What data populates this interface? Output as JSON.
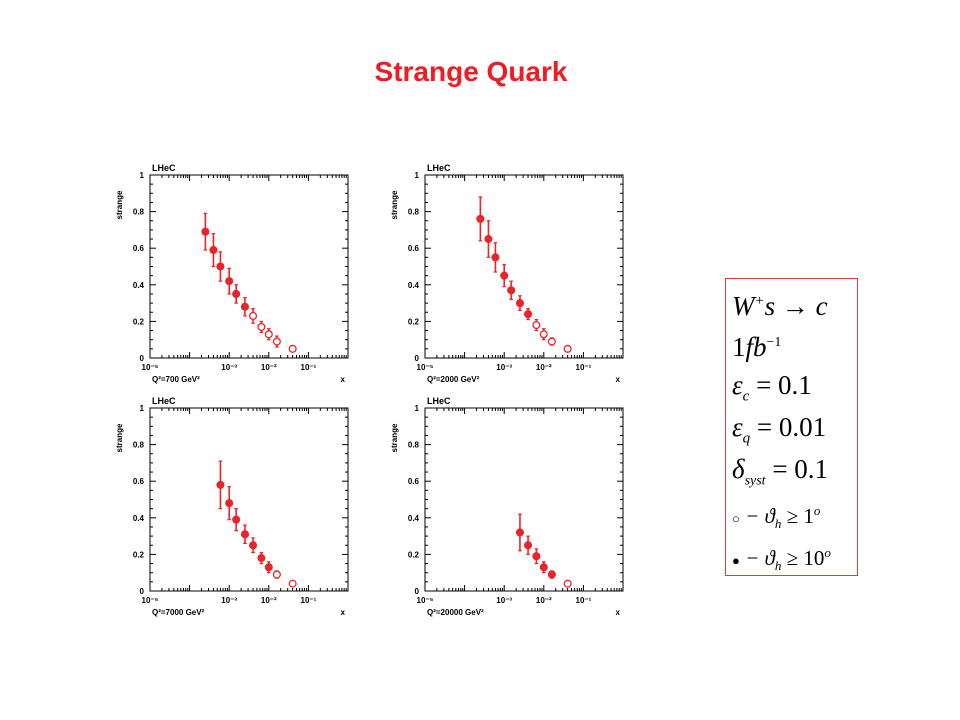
{
  "slide": {
    "title": "Strange Quark"
  },
  "colors": {
    "title": "#ee1c25",
    "marker": "#e8252a",
    "legend_border": "#e23a3a"
  },
  "chart_data": [
    {
      "type": "scatter",
      "tag": "LHeC",
      "ylabel": "strange",
      "xlabel": "x",
      "q2_label": "Q²=700 GeV²",
      "x_scale": "log",
      "xlim": [
        1e-05,
        1
      ],
      "ylim": [
        0,
        1
      ],
      "xticks": [
        "10⁻⁵",
        "10⁻³",
        "10⁻²",
        "10⁻¹"
      ],
      "yticks": [
        "0",
        "0.2",
        "0.4",
        "0.6",
        "0.8",
        "1"
      ],
      "points": [
        {
          "x": 0.00025,
          "y": 0.69,
          "err": 0.1,
          "filled": true
        },
        {
          "x": 0.0004,
          "y": 0.59,
          "err": 0.09,
          "filled": true
        },
        {
          "x": 0.0006,
          "y": 0.5,
          "err": 0.08,
          "filled": true
        },
        {
          "x": 0.001,
          "y": 0.42,
          "err": 0.07,
          "filled": true
        },
        {
          "x": 0.0015,
          "y": 0.35,
          "err": 0.05,
          "filled": true
        },
        {
          "x": 0.0025,
          "y": 0.28,
          "err": 0.05,
          "filled": true
        },
        {
          "x": 0.004,
          "y": 0.23,
          "err": 0.04,
          "filled": false
        },
        {
          "x": 0.0065,
          "y": 0.17,
          "err": 0.03,
          "filled": false
        },
        {
          "x": 0.01,
          "y": 0.13,
          "err": 0.03,
          "filled": false
        },
        {
          "x": 0.016,
          "y": 0.09,
          "err": 0.03,
          "filled": false
        },
        {
          "x": 0.04,
          "y": 0.05,
          "err": 0.0,
          "filled": false
        }
      ]
    },
    {
      "type": "scatter",
      "tag": "LHeC",
      "ylabel": "strange",
      "xlabel": "x",
      "q2_label": "Q²=2000 GeV²",
      "x_scale": "log",
      "xlim": [
        1e-05,
        1
      ],
      "ylim": [
        0,
        1
      ],
      "xticks": [
        "10⁻⁵",
        "10⁻³",
        "10⁻²",
        "10⁻¹"
      ],
      "yticks": [
        "0",
        "0.2",
        "0.4",
        "0.6",
        "0.8",
        "1"
      ],
      "points": [
        {
          "x": 0.00025,
          "y": 0.76,
          "err": 0.12,
          "filled": true
        },
        {
          "x": 0.0004,
          "y": 0.65,
          "err": 0.1,
          "filled": true
        },
        {
          "x": 0.0006,
          "y": 0.55,
          "err": 0.08,
          "filled": true
        },
        {
          "x": 0.001,
          "y": 0.45,
          "err": 0.06,
          "filled": true
        },
        {
          "x": 0.0015,
          "y": 0.37,
          "err": 0.05,
          "filled": true
        },
        {
          "x": 0.0025,
          "y": 0.3,
          "err": 0.04,
          "filled": true
        },
        {
          "x": 0.004,
          "y": 0.24,
          "err": 0.03,
          "filled": true
        },
        {
          "x": 0.0065,
          "y": 0.18,
          "err": 0.03,
          "filled": false
        },
        {
          "x": 0.01,
          "y": 0.13,
          "err": 0.03,
          "filled": false
        },
        {
          "x": 0.016,
          "y": 0.09,
          "err": 0.02,
          "filled": false
        },
        {
          "x": 0.04,
          "y": 0.05,
          "err": 0.0,
          "filled": false
        }
      ]
    },
    {
      "type": "scatter",
      "tag": "LHeC",
      "ylabel": "strange",
      "xlabel": "x",
      "q2_label": "Q²=7000 GeV²",
      "x_scale": "log",
      "xlim": [
        1e-05,
        1
      ],
      "ylim": [
        0,
        1
      ],
      "xticks": [
        "10⁻⁵",
        "10⁻³",
        "10⁻²",
        "10⁻¹"
      ],
      "yticks": [
        "0",
        "0.2",
        "0.4",
        "0.6",
        "0.8",
        "1"
      ],
      "points": [
        {
          "x": 0.0006,
          "y": 0.58,
          "err": 0.13,
          "filled": true
        },
        {
          "x": 0.001,
          "y": 0.48,
          "err": 0.09,
          "filled": true
        },
        {
          "x": 0.0015,
          "y": 0.39,
          "err": 0.06,
          "filled": true
        },
        {
          "x": 0.0025,
          "y": 0.31,
          "err": 0.05,
          "filled": true
        },
        {
          "x": 0.004,
          "y": 0.25,
          "err": 0.04,
          "filled": true
        },
        {
          "x": 0.0065,
          "y": 0.18,
          "err": 0.03,
          "filled": true
        },
        {
          "x": 0.01,
          "y": 0.13,
          "err": 0.03,
          "filled": true
        },
        {
          "x": 0.016,
          "y": 0.09,
          "err": 0.02,
          "filled": false
        },
        {
          "x": 0.04,
          "y": 0.04,
          "err": 0.0,
          "filled": false
        }
      ]
    },
    {
      "type": "scatter",
      "tag": "LHeC",
      "ylabel": "strange",
      "xlabel": "x",
      "q2_label": "Q²=20000 GeV²",
      "x_scale": "log",
      "xlim": [
        1e-05,
        1
      ],
      "ylim": [
        0,
        1
      ],
      "xticks": [
        "10⁻⁵",
        "10⁻³",
        "10⁻²",
        "10⁻¹"
      ],
      "yticks": [
        "0",
        "0.2",
        "0.4",
        "0.6",
        "0.8",
        "1"
      ],
      "points": [
        {
          "x": 0.0025,
          "y": 0.32,
          "err": 0.1,
          "filled": true
        },
        {
          "x": 0.004,
          "y": 0.25,
          "err": 0.05,
          "filled": true
        },
        {
          "x": 0.0065,
          "y": 0.19,
          "err": 0.04,
          "filled": true
        },
        {
          "x": 0.01,
          "y": 0.13,
          "err": 0.03,
          "filled": true
        },
        {
          "x": 0.016,
          "y": 0.09,
          "err": 0.02,
          "filled": true
        },
        {
          "x": 0.04,
          "y": 0.04,
          "err": 0.0,
          "filled": false
        }
      ]
    }
  ],
  "legend": {
    "process": {
      "a": "W",
      "b": "+",
      "c": "s",
      "d": "→",
      "e": "c"
    },
    "luminosity": {
      "a": "1",
      "b": "fb",
      "c": "−1"
    },
    "eff_c": {
      "a": "ε",
      "b": "c",
      "c": " = 0.1"
    },
    "eff_q": {
      "a": "ε",
      "b": "q",
      "c": " = 0.01"
    },
    "syst": {
      "a": "δ",
      "b": "syst",
      "c": " = 0.1"
    },
    "open_marker": {
      "sym": "○",
      "a": " − ϑ",
      "b": "h",
      "c": " ≥ 1",
      "d": "o"
    },
    "filled_marker": {
      "sym": "●",
      "a": " − ϑ",
      "b": "h",
      "c": " ≥ 10",
      "d": "o"
    }
  }
}
